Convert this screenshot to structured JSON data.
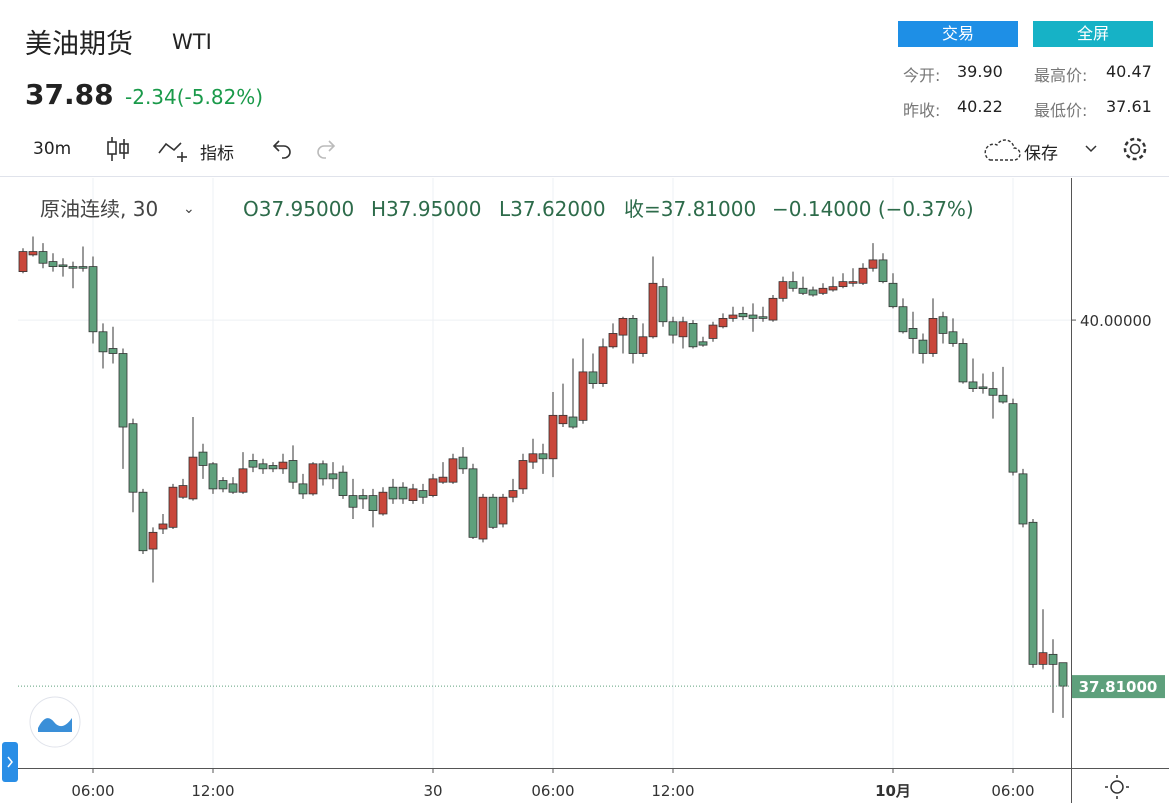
{
  "header": {
    "title": "美油期货",
    "symbol": "WTI",
    "price": "37.88",
    "change": "-2.34(-5.82%)",
    "buttons": [
      "交易",
      "全屏"
    ],
    "stats": [
      {
        "label": "今开:",
        "value": "39.90"
      },
      {
        "label": "最高价:",
        "value": "40.47"
      },
      {
        "label": "昨收:",
        "value": "40.22"
      },
      {
        "label": "最低价:",
        "value": "37.61"
      }
    ]
  },
  "toolbar": {
    "interval": "30m",
    "indicators": "指标",
    "save": "保存"
  },
  "legend": {
    "name": "原油连续, 30",
    "open": "O37.95000",
    "high": "H37.95000",
    "low": "L37.62000",
    "close": "收=37.81000",
    "change": "−0.14000 (−0.37%)"
  },
  "chart_data": {
    "type": "candlestick",
    "up_color": "#c9473b",
    "down_color": "#5ea07c",
    "categories": [
      null,
      null,
      null,
      null,
      null,
      null,
      null,
      "06:00",
      null,
      null,
      null,
      null,
      null,
      null,
      null,
      null,
      null,
      null,
      null,
      "12:00",
      null,
      null,
      null,
      null,
      null,
      null,
      null,
      null,
      null,
      null,
      null,
      null,
      null,
      null,
      null,
      null,
      null,
      null,
      null,
      null,
      null,
      "30",
      null,
      null,
      null,
      null,
      null,
      null,
      null,
      null,
      null,
      null,
      null,
      "06:00",
      null,
      null,
      null,
      null,
      null,
      null,
      null,
      null,
      null,
      null,
      null,
      "12:00",
      null,
      null,
      null,
      null,
      null,
      null,
      null,
      null,
      null,
      null,
      null,
      null,
      null,
      null,
      null,
      null,
      null,
      null,
      null,
      null,
      null,
      "10月",
      null,
      null,
      null,
      null,
      null,
      null,
      null,
      null,
      null,
      null,
      null,
      "06:00",
      null,
      null,
      null,
      null,
      null
    ],
    "ohlc": [
      [
        40.29,
        40.43,
        40.28,
        40.41
      ],
      [
        40.39,
        40.5,
        40.38,
        40.41
      ],
      [
        40.41,
        40.46,
        40.31,
        40.34
      ],
      [
        40.35,
        40.4,
        40.29,
        40.32
      ],
      [
        40.33,
        40.37,
        40.26,
        40.32
      ],
      [
        40.32,
        40.35,
        40.19,
        40.31
      ],
      [
        40.32,
        40.44,
        40.29,
        40.31
      ],
      [
        40.32,
        40.38,
        39.86,
        39.93
      ],
      [
        39.93,
        39.98,
        39.71,
        39.81
      ],
      [
        39.83,
        39.96,
        39.74,
        39.8
      ],
      [
        39.8,
        39.83,
        39.11,
        39.36
      ],
      [
        39.38,
        39.41,
        38.85,
        38.97
      ],
      [
        38.97,
        38.99,
        38.6,
        38.62
      ],
      [
        38.63,
        38.76,
        38.43,
        38.73
      ],
      [
        38.75,
        38.84,
        38.72,
        38.78
      ],
      [
        38.76,
        39.02,
        38.75,
        39.0
      ],
      [
        38.94,
        39.05,
        38.93,
        39.01
      ],
      [
        38.93,
        39.42,
        38.92,
        39.18
      ],
      [
        39.21,
        39.26,
        39.05,
        39.13
      ],
      [
        39.14,
        39.15,
        38.96,
        38.99
      ],
      [
        39.04,
        39.06,
        38.97,
        38.99
      ],
      [
        39.02,
        39.06,
        38.96,
        38.97
      ],
      [
        38.97,
        39.21,
        38.96,
        39.11
      ],
      [
        39.16,
        39.2,
        39.09,
        39.12
      ],
      [
        39.14,
        39.17,
        39.08,
        39.11
      ],
      [
        39.13,
        39.15,
        39.09,
        39.11
      ],
      [
        39.11,
        39.2,
        39.08,
        39.15
      ],
      [
        39.16,
        39.25,
        38.99,
        39.03
      ],
      [
        39.02,
        39.08,
        38.93,
        38.96
      ],
      [
        38.96,
        39.15,
        38.95,
        39.14
      ],
      [
        39.14,
        39.16,
        39.01,
        39.05
      ],
      [
        39.08,
        39.15,
        38.99,
        39.05
      ],
      [
        39.09,
        39.13,
        38.93,
        38.95
      ],
      [
        38.95,
        39.05,
        38.81,
        38.88
      ],
      [
        38.95,
        38.99,
        38.87,
        38.93
      ],
      [
        38.95,
        38.99,
        38.76,
        38.86
      ],
      [
        38.84,
        39.0,
        38.83,
        38.97
      ],
      [
        39.0,
        39.05,
        38.9,
        38.93
      ],
      [
        39.0,
        39.03,
        38.9,
        38.93
      ],
      [
        38.92,
        39.02,
        38.9,
        38.99
      ],
      [
        38.98,
        39.02,
        38.9,
        38.94
      ],
      [
        38.95,
        39.08,
        38.94,
        39.05
      ],
      [
        39.03,
        39.15,
        39.02,
        39.06
      ],
      [
        39.03,
        39.2,
        39.02,
        39.17
      ],
      [
        39.18,
        39.24,
        39.08,
        39.11
      ],
      [
        39.11,
        39.14,
        38.69,
        38.7
      ],
      [
        38.69,
        38.96,
        38.67,
        38.94
      ],
      [
        38.94,
        38.96,
        38.75,
        38.76
      ],
      [
        38.78,
        38.96,
        38.76,
        38.94
      ],
      [
        38.94,
        39.05,
        38.91,
        38.98
      ],
      [
        38.99,
        39.2,
        38.96,
        39.16
      ],
      [
        39.15,
        39.29,
        39.11,
        39.2
      ],
      [
        39.2,
        39.26,
        39.08,
        39.17
      ],
      [
        39.17,
        39.57,
        39.06,
        39.43
      ],
      [
        39.38,
        39.62,
        39.36,
        39.43
      ],
      [
        39.42,
        39.77,
        39.35,
        39.36
      ],
      [
        39.4,
        39.89,
        39.38,
        39.69
      ],
      [
        39.69,
        39.8,
        39.59,
        39.62
      ],
      [
        39.62,
        39.89,
        39.6,
        39.84
      ],
      [
        39.84,
        39.98,
        39.83,
        39.92
      ],
      [
        39.91,
        40.02,
        39.8,
        40.01
      ],
      [
        40.01,
        40.03,
        39.74,
        39.8
      ],
      [
        39.8,
        39.98,
        39.78,
        39.9
      ],
      [
        39.9,
        40.38,
        39.89,
        40.22
      ],
      [
        40.2,
        40.25,
        39.96,
        39.99
      ],
      [
        39.99,
        40.02,
        39.86,
        39.91
      ],
      [
        39.9,
        40.02,
        39.83,
        39.99
      ],
      [
        39.98,
        40.0,
        39.83,
        39.84
      ],
      [
        39.87,
        39.9,
        39.84,
        39.85
      ],
      [
        39.89,
        39.99,
        39.87,
        39.97
      ],
      [
        39.96,
        40.04,
        39.95,
        40.01
      ],
      [
        40.01,
        40.08,
        39.99,
        40.03
      ],
      [
        40.04,
        40.08,
        40.0,
        40.02
      ],
      [
        40.03,
        40.1,
        39.93,
        40.01
      ],
      [
        40.02,
        40.08,
        39.99,
        40.01
      ],
      [
        40.0,
        40.15,
        39.99,
        40.13
      ],
      [
        40.13,
        40.26,
        40.11,
        40.23
      ],
      [
        40.23,
        40.29,
        40.17,
        40.19
      ],
      [
        40.19,
        40.26,
        40.15,
        40.16
      ],
      [
        40.18,
        40.2,
        40.14,
        40.15
      ],
      [
        40.16,
        40.22,
        40.15,
        40.19
      ],
      [
        40.18,
        40.26,
        40.17,
        40.2
      ],
      [
        40.2,
        40.28,
        40.19,
        40.23
      ],
      [
        40.22,
        40.31,
        40.2,
        40.23
      ],
      [
        40.22,
        40.34,
        40.21,
        40.31
      ],
      [
        40.31,
        40.46,
        40.29,
        40.36
      ],
      [
        40.36,
        40.4,
        40.22,
        40.23
      ],
      [
        40.22,
        40.28,
        40.07,
        40.08
      ],
      [
        40.08,
        40.13,
        39.92,
        39.93
      ],
      [
        39.95,
        40.05,
        39.8,
        39.89
      ],
      [
        39.88,
        39.92,
        39.74,
        39.8
      ],
      [
        39.8,
        40.13,
        39.78,
        40.01
      ],
      [
        40.02,
        40.05,
        39.86,
        39.92
      ],
      [
        39.93,
        40.01,
        39.84,
        39.86
      ],
      [
        39.86,
        39.89,
        39.62,
        39.63
      ],
      [
        39.63,
        39.77,
        39.57,
        39.59
      ],
      [
        39.6,
        39.68,
        39.56,
        39.59
      ],
      [
        39.59,
        39.69,
        39.41,
        39.55
      ],
      [
        39.55,
        39.72,
        39.5,
        39.51
      ],
      [
        39.5,
        39.53,
        39.07,
        39.09
      ],
      [
        39.08,
        39.11,
        38.76,
        38.78
      ],
      [
        38.79,
        38.81,
        37.92,
        37.94
      ],
      [
        37.94,
        38.27,
        37.91,
        38.01
      ],
      [
        38.0,
        38.09,
        37.65,
        37.94
      ],
      [
        37.95,
        37.95,
        37.62,
        37.81
      ]
    ],
    "ylim": [
      37.32,
      40.85
    ],
    "yticks": [
      {
        "value": 40,
        "label": "40.00000"
      }
    ],
    "last_price": {
      "value": 37.81,
      "label": "37.81000"
    },
    "grid": true
  }
}
